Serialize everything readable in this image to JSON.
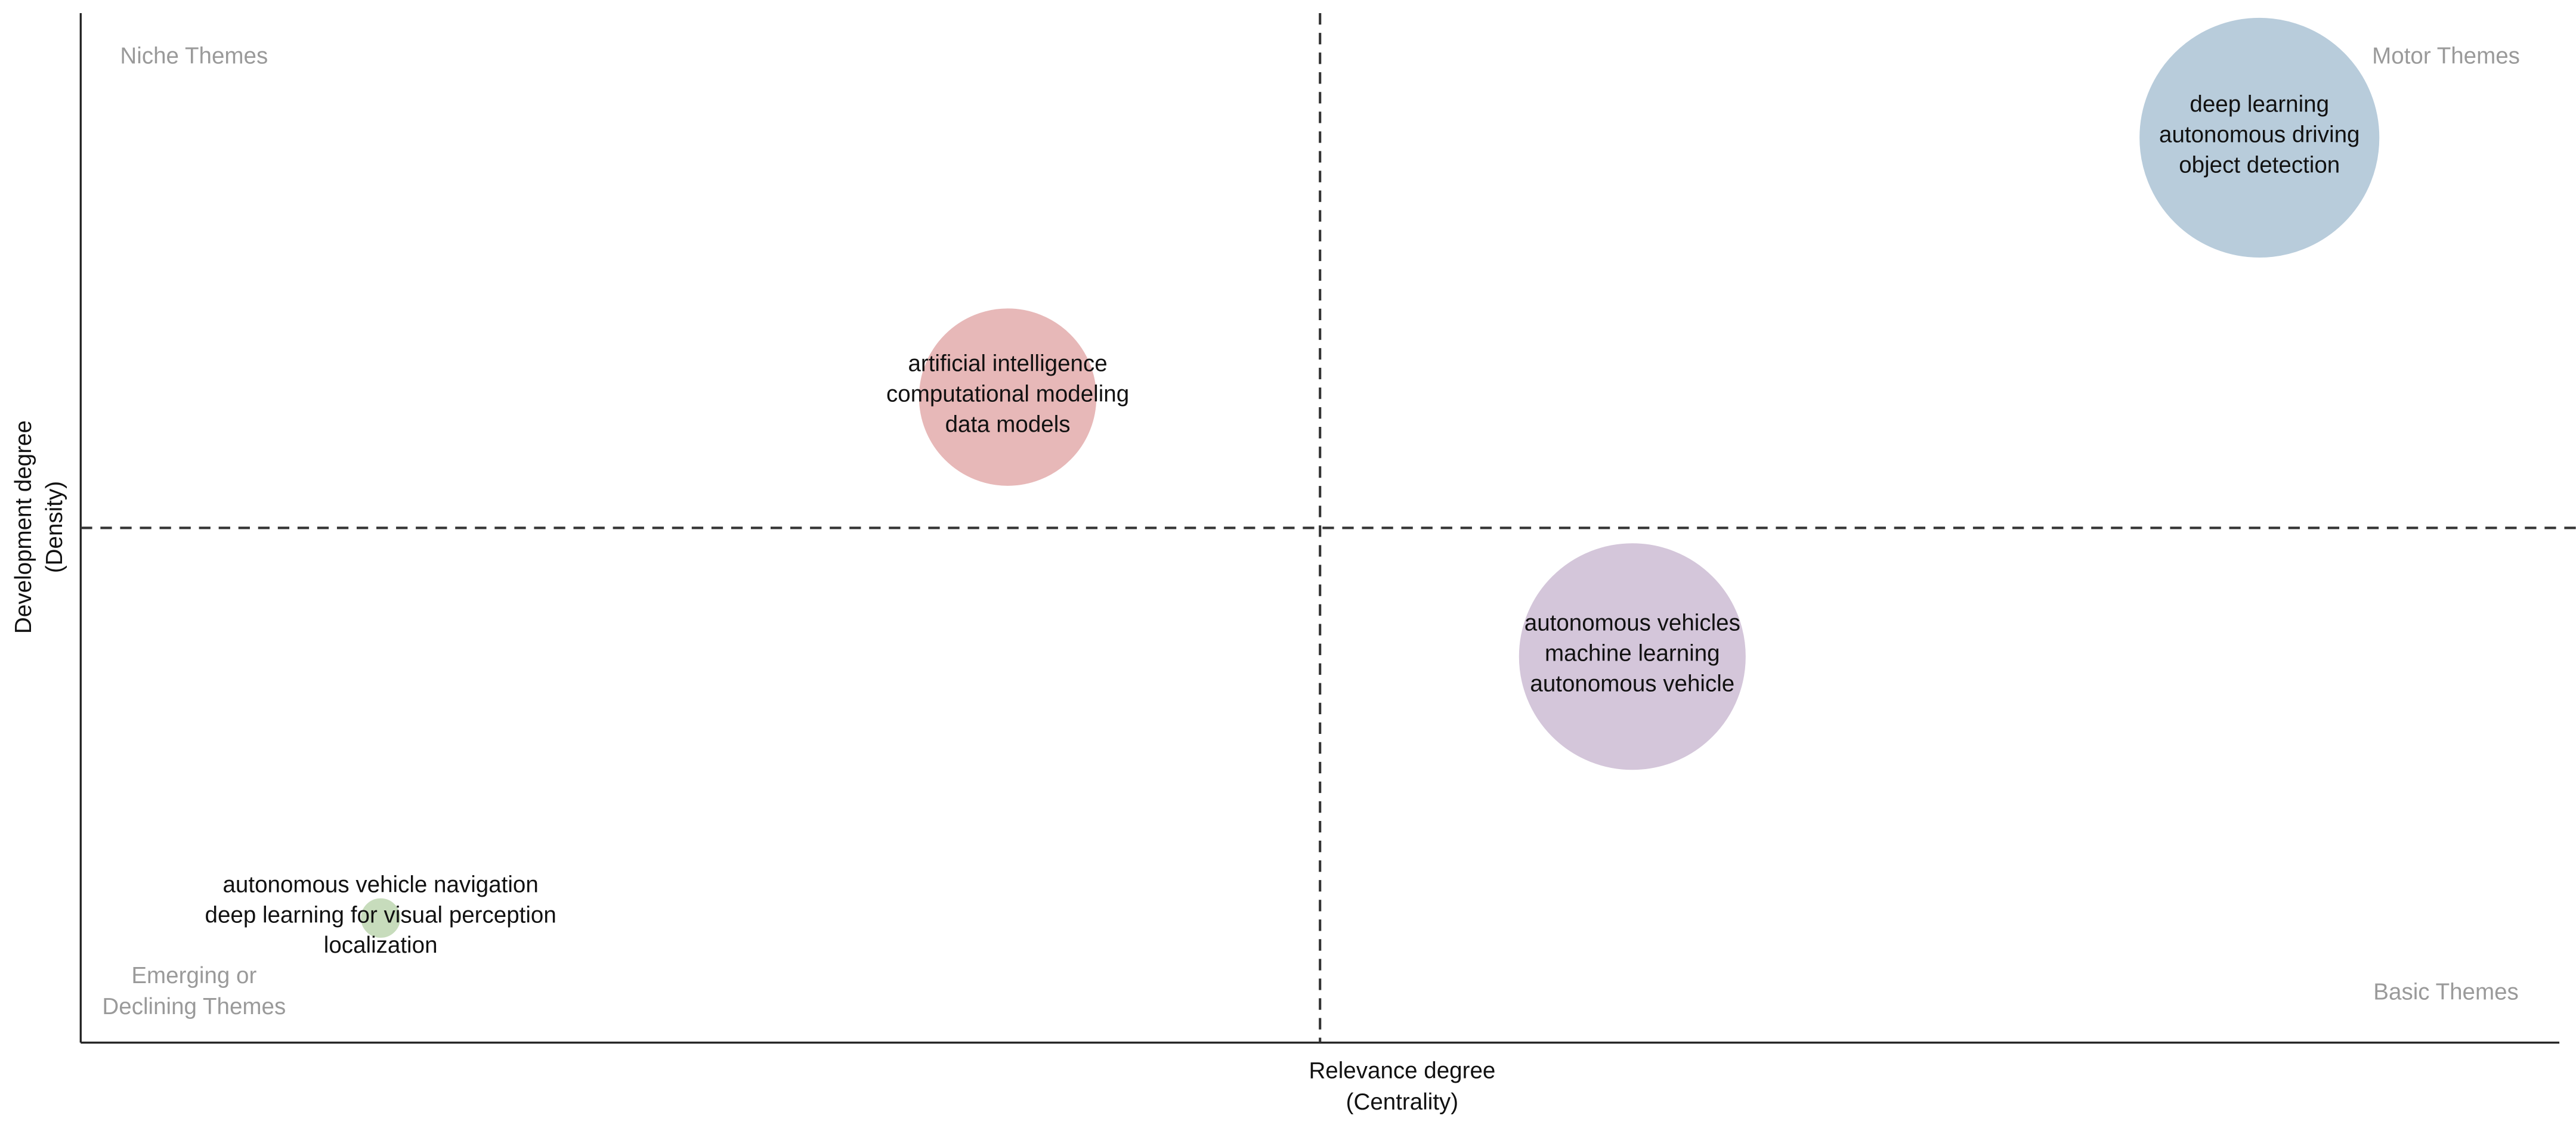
{
  "chart_data": {
    "type": "bubble",
    "x_label": [
      "Relevance degree",
      "(Centrality)"
    ],
    "y_label": [
      "Development degree",
      "(Density)"
    ],
    "xlim": [
      0,
      100
    ],
    "ylim": [
      0,
      100
    ],
    "x_divider": 50,
    "y_divider": 50,
    "quadrants": [
      {
        "corner": "top-left",
        "lines": [
          "Niche Themes"
        ]
      },
      {
        "corner": "top-right",
        "lines": [
          "Motor Themes"
        ]
      },
      {
        "corner": "bottom-left",
        "lines": [
          "Emerging or",
          "Declining Themes"
        ]
      },
      {
        "corner": "bottom-right",
        "lines": [
          "Basic Themes"
        ]
      }
    ],
    "points": [
      {
        "x": 87.9,
        "y": 87.9,
        "size": 72,
        "color": "#c6dbec",
        "label": [
          "deep learning",
          "autonomous driving",
          "object detection"
        ]
      },
      {
        "x": 37.4,
        "y": 62.7,
        "size": 53,
        "color": "#f8c6c6",
        "label": [
          "artificial intelligence",
          "computational modeling",
          "data models"
        ]
      },
      {
        "x": 62.6,
        "y": 37.5,
        "size": 68,
        "color": "#e4d5ea",
        "label": [
          "autonomous vehicles",
          "machine learning",
          "autonomous vehicle"
        ]
      },
      {
        "x": 12.1,
        "y": 12.1,
        "size": 11,
        "color": "#d6edca",
        "label": [
          "autonomous vehicle navigation",
          "deep learning for visual perception",
          "localization"
        ]
      }
    ]
  }
}
